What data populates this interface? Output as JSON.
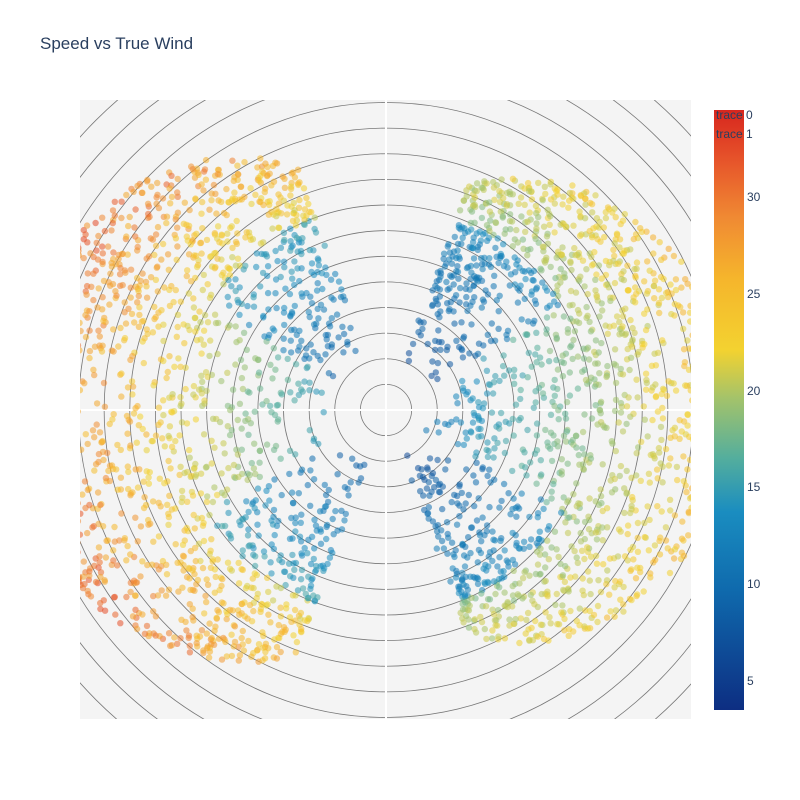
{
  "chart_data": {
    "type": "scatter",
    "subtype": "polar-scatter",
    "title": "Speed vs True Wind",
    "legend": {
      "placement": "top-right",
      "entries": [
        "trace 0",
        "trace 1"
      ]
    },
    "colorbar": {
      "ticks": [
        5,
        10,
        15,
        20,
        25,
        30
      ],
      "range": [
        3.5,
        34.5
      ],
      "colors": [
        "#0d2e82",
        "#0f6aad",
        "#1a8dc0",
        "#54ae9d",
        "#a4c36a",
        "#f3d230",
        "#f5b52c",
        "#f08a33",
        "#e6522a",
        "#d7261e"
      ]
    },
    "radial_grid": {
      "rings": 16,
      "color": "#777777"
    },
    "background": "#f5f5f5",
    "series": [
      {
        "name": "trace 0",
        "description": "polar points with color mapped to wind speed",
        "lobes": [
          {
            "theta_range": [
              200,
              340
            ],
            "r_range": [
              0.12,
              0.92
            ],
            "color_value_range": [
              7,
              33
            ]
          },
          {
            "theta_range": [
              20,
              160
            ],
            "r_range": [
              0.1,
              0.85
            ],
            "color_value_range": [
              6,
              27
            ]
          }
        ]
      },
      {
        "name": "trace 1",
        "description": "secondary marker trace (shown in legend)"
      }
    ]
  }
}
